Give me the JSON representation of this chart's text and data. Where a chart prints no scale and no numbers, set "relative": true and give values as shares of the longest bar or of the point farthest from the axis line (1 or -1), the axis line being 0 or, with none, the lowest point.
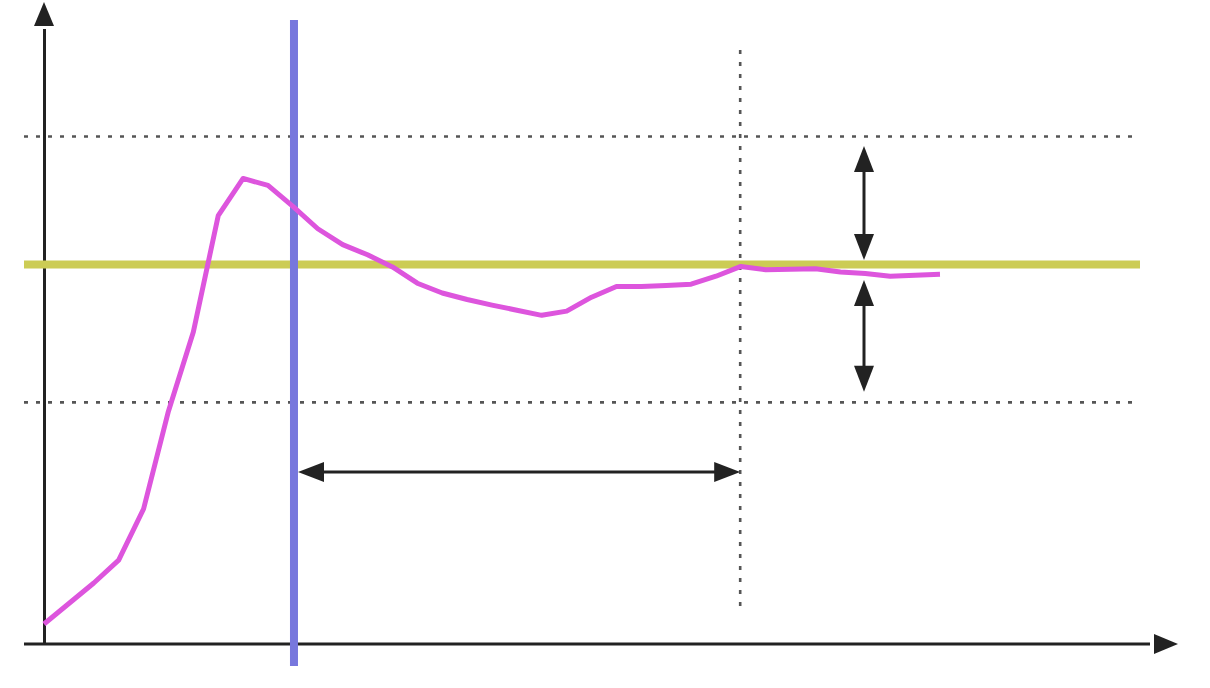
{
  "chart_data": {
    "type": "line",
    "relative": true,
    "categories": [
      null,
      null,
      null,
      null,
      null,
      null,
      null,
      null,
      null,
      null,
      null,
      null,
      null,
      null,
      null,
      null,
      null,
      null,
      null,
      null,
      null,
      null,
      null,
      null,
      null,
      null,
      null,
      null,
      null,
      null,
      null,
      null,
      null,
      null,
      null,
      null,
      null
    ],
    "series": [
      {
        "color": "#dd55dd",
        "values": [
          0.043,
          0.087,
          0.131,
          0.18,
          0.29,
          0.5,
          0.67,
          0.92,
          1,
          0.985,
          0.94,
          0.892,
          0.858,
          0.836,
          0.81,
          0.775,
          0.754,
          0.74,
          0.728,
          0.717,
          0.706,
          0.715,
          0.745,
          0.768,
          0.768,
          0.77,
          0.773,
          0.79,
          0.811,
          0.804,
          0.805,
          0.806,
          0.799,
          0.796,
          0.79,
          0.792,
          0.794
        ]
      }
    ],
    "ref_lines": [
      {
        "axis": "y",
        "value": 0.815,
        "color": "#cccc55",
        "line_style": "solid"
      },
      {
        "axis": "y",
        "value": 1.09,
        "color": "#555555",
        "line_style": "dotted"
      },
      {
        "axis": "y",
        "value": 0.519,
        "color": "#555555",
        "line_style": "dotted"
      }
    ]
  }
}
